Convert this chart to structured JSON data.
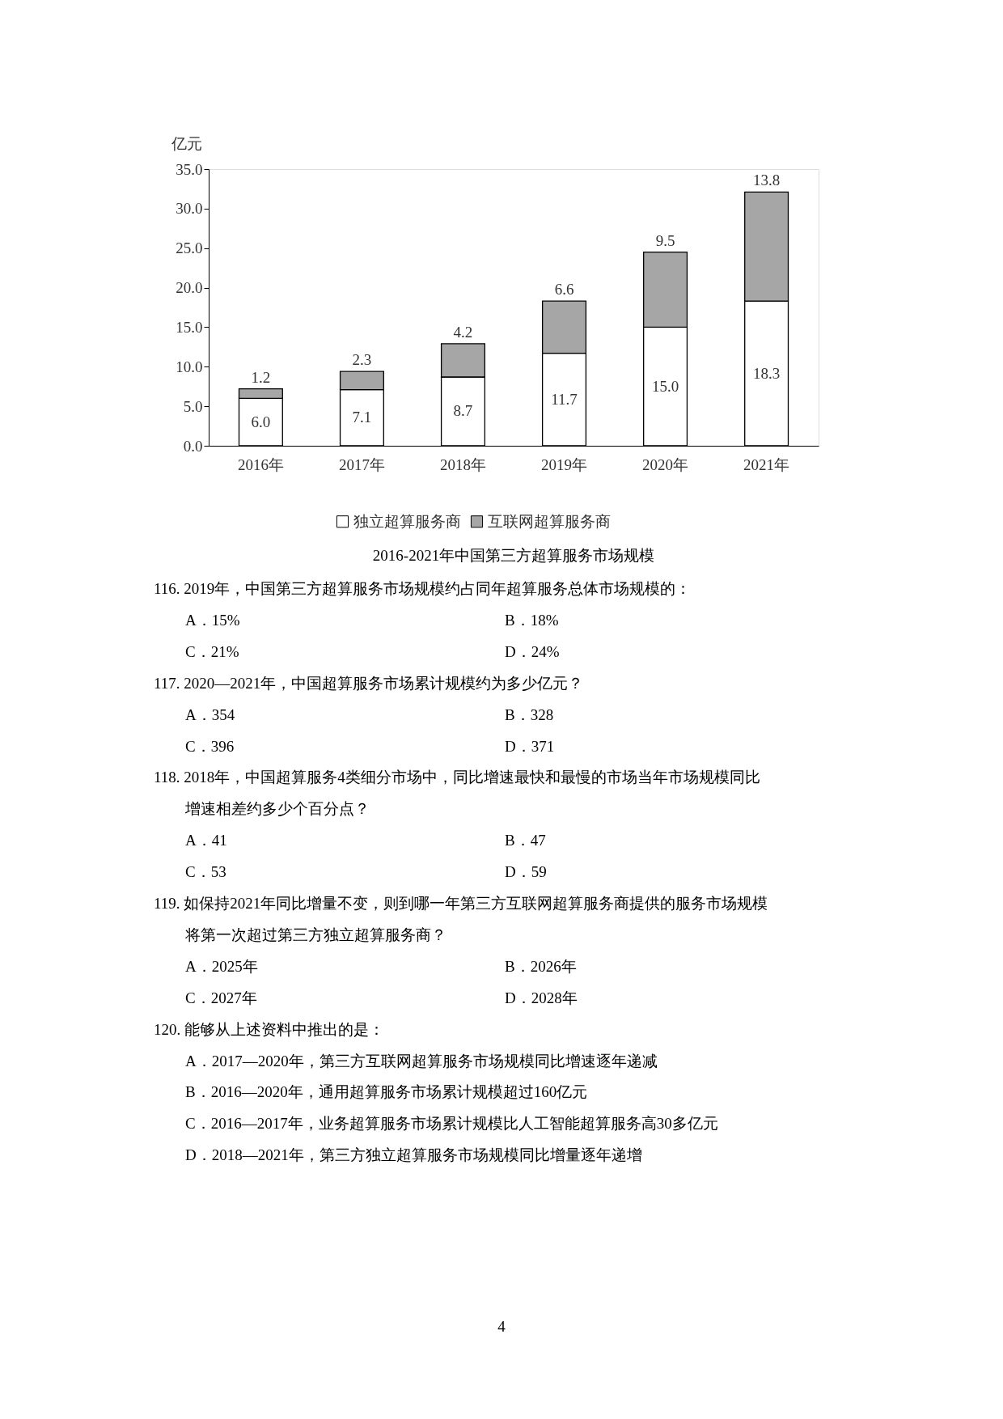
{
  "chart_data": {
    "type": "bar",
    "stacked": true,
    "title": "2016-2021年中国第三方超算服务市场规模",
    "ylabel": "亿元",
    "categories": [
      "2016年",
      "2017年",
      "2018年",
      "2019年",
      "2020年",
      "2021年"
    ],
    "series": [
      {
        "name": "独立超算服务商",
        "color": "#ffffff",
        "values": [
          6.0,
          7.1,
          8.7,
          11.7,
          15.0,
          18.3
        ],
        "value_labels": [
          "6.0",
          "7.1",
          "8.7",
          "11.7",
          "15.0",
          "18.3"
        ]
      },
      {
        "name": "互联网超算服务商",
        "color": "#a6a6a6",
        "values": [
          1.2,
          2.3,
          4.2,
          6.6,
          9.5,
          13.8
        ],
        "value_labels": [
          "1.2",
          "2.3",
          "4.2",
          "6.6",
          "9.5",
          "13.8"
        ]
      }
    ],
    "ylim": [
      0,
      35
    ],
    "yticks": [
      {
        "value": 0,
        "label": "0.0"
      },
      {
        "value": 5,
        "label": "5.0"
      },
      {
        "value": 10,
        "label": "10.0"
      },
      {
        "value": 15,
        "label": "15.0"
      },
      {
        "value": 20,
        "label": "20.0"
      },
      {
        "value": 25,
        "label": "25.0"
      },
      {
        "value": 30,
        "label": "30.0"
      },
      {
        "value": 35,
        "label": "35.0"
      }
    ],
    "legend": "bottom",
    "grid": false,
    "annotations": [
      "116. 2019年，中国第三方超算服务市场规模约占同年超算服务总体市场规模的：",
      "A．15%",
      "B．18%",
      "C．21%",
      "D．24%",
      "117. 2020—2021年，中国超算服务市场累计规模约为多少亿元？",
      "A．354",
      "B．328",
      "C．396",
      "D．371",
      "118. 2018年，中国超算服务4类细分市场中，同比增速最快和最慢的市场当年市场规模同比",
      "增速相差约多少个百分点？",
      "A．41",
      "B．47",
      "C．53",
      "D．59",
      "119. 如保持2021年同比增量不变，则到哪一年第三方互联网超算服务商提供的服务市场规模",
      "将第一次超过第三方独立超算服务商？",
      "A．2025年",
      "B．2026年",
      "C．2027年",
      "D．2028年",
      "120. 能够从上述资料中推出的是：",
      "A．2017—2020年，第三方互联网超算服务市场规模同比增速逐年递减",
      "B．2016—2020年，通用超算服务市场累计规模超过160亿元",
      "C．2016—2017年，业务超算服务市场累计规模比人工智能超算服务高30多亿元",
      "D．2018—2021年，第三方独立超算服务市场规模同比增量逐年递增",
      "4"
    ]
  }
}
